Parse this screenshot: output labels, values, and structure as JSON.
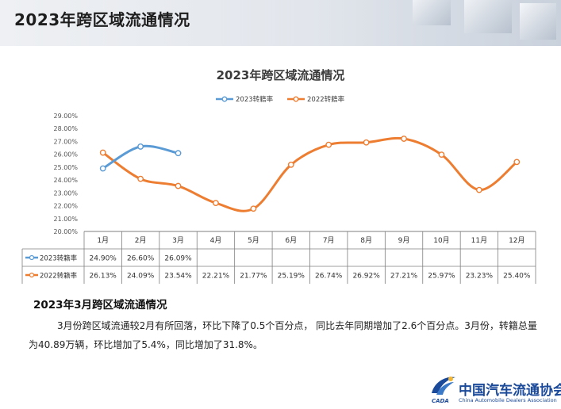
{
  "header": {
    "title": "2023年跨区域流通情况"
  },
  "chart_data": {
    "type": "line",
    "title": "2023年跨区域流通情况",
    "categories": [
      "1月",
      "2月",
      "3月",
      "4月",
      "5月",
      "6月",
      "7月",
      "8月",
      "9月",
      "10月",
      "11月",
      "12月"
    ],
    "ylim": [
      20,
      29
    ],
    "yticks": [
      "29.00%",
      "28.00%",
      "27.00%",
      "26.00%",
      "25.00%",
      "24.00%",
      "23.00%",
      "22.00%",
      "21.00%",
      "20.00%"
    ],
    "legend_position": "top",
    "smooth": true,
    "grid": false,
    "series": [
      {
        "name": "2023转籍率",
        "color": "#5b9bd5",
        "values": [
          24.9,
          26.6,
          26.09,
          null,
          null,
          null,
          null,
          null,
          null,
          null,
          null,
          null
        ],
        "labels": [
          "24.90%",
          "26.60%",
          "26.09%",
          "",
          "",
          "",
          "",
          "",
          "",
          "",
          "",
          ""
        ]
      },
      {
        "name": "2022转籍率",
        "color": "#ed7d31",
        "values": [
          26.13,
          24.09,
          23.54,
          22.21,
          21.77,
          25.19,
          26.74,
          26.92,
          27.21,
          25.97,
          23.23,
          25.4
        ],
        "labels": [
          "26.13%",
          "24.09%",
          "23.54%",
          "22.21%",
          "21.77%",
          "25.19%",
          "26.74%",
          "26.92%",
          "27.21%",
          "25.97%",
          "23.23%",
          "25.40%"
        ]
      }
    ]
  },
  "summary": {
    "title": "2023年3月跨区域流通情况",
    "body": "3月份跨区域流通较2月有所回落，环比下降了0.5个百分点， 同比去年同期增加了2.6个百分点。3月份，转籍总量为40.89万辆，环比增加了5.4%，同比增加了31.8%。"
  },
  "logo": {
    "name_cn": "中国汽车流通协会",
    "name_en": "China Automobile Dealers Association",
    "abbr": "CADA",
    "color": "#1b4a9a"
  }
}
